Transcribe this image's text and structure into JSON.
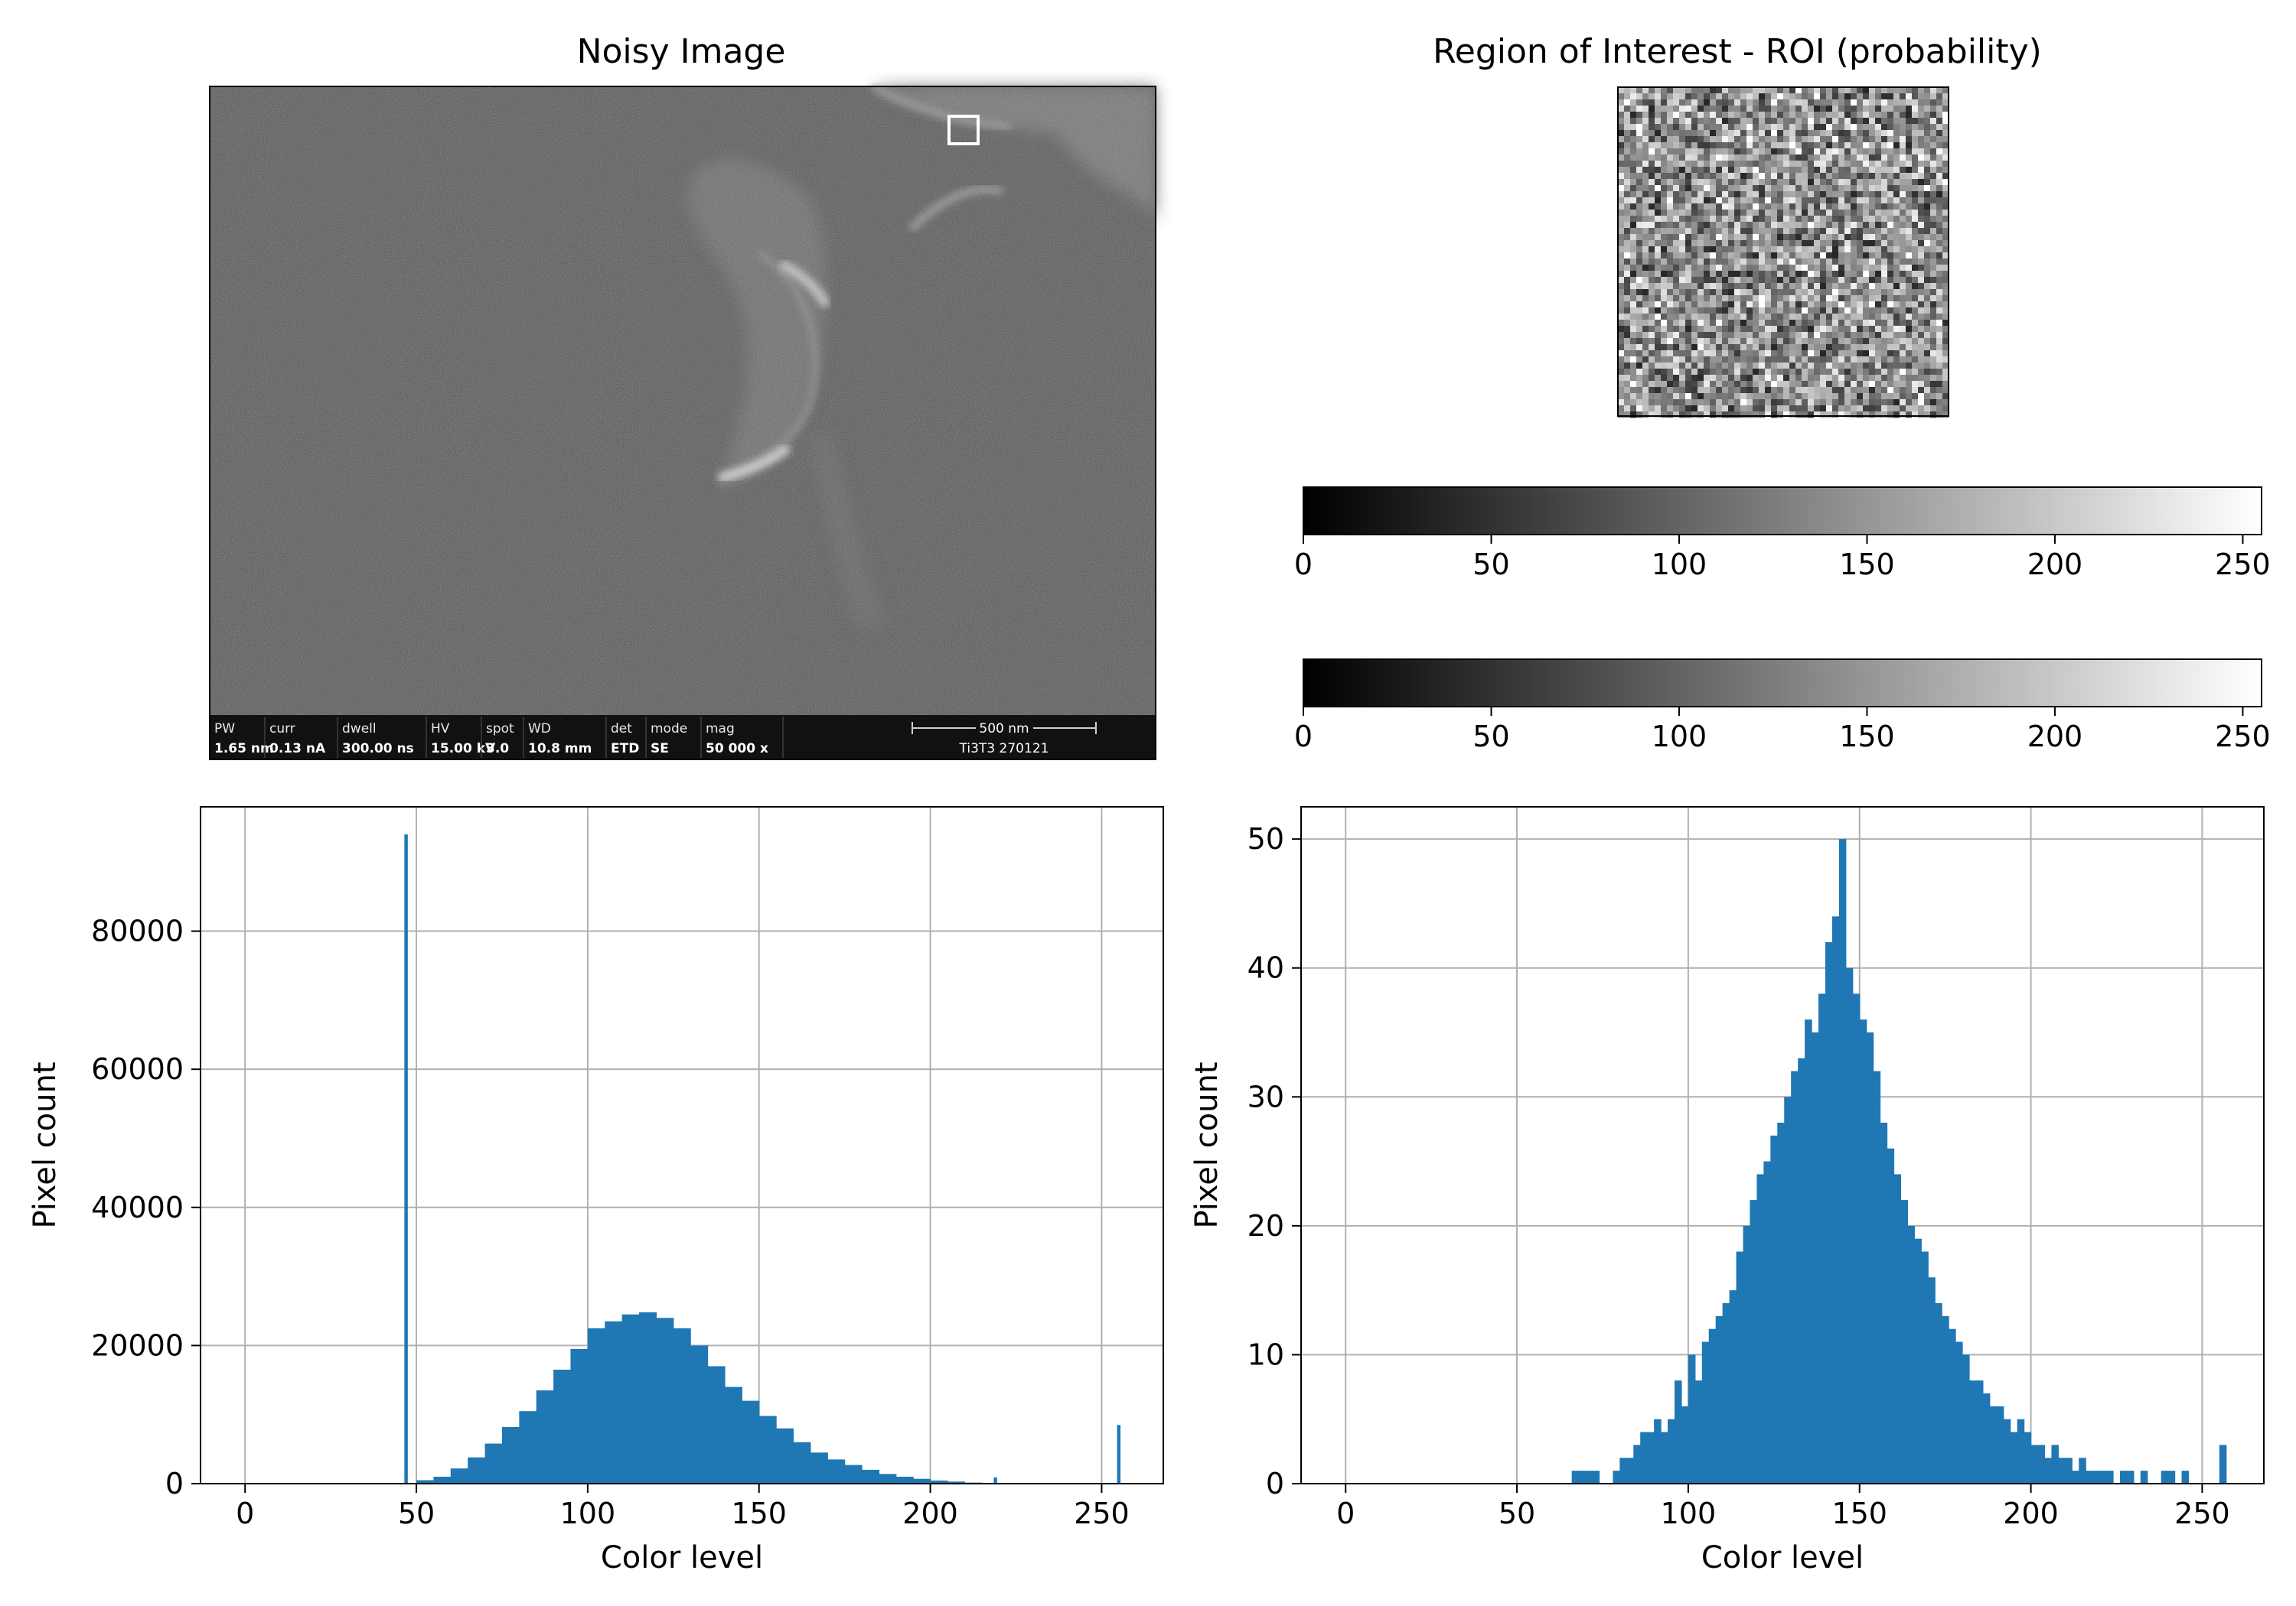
{
  "panels": {
    "noisy_image": {
      "title": "Noisy Image"
    },
    "roi": {
      "title": "Region of Interest - ROI (probability)"
    }
  },
  "sem_info_bar": {
    "cells": [
      {
        "label": "PW",
        "value": "1.65 nm"
      },
      {
        "label": "curr",
        "value": "0.13 nA"
      },
      {
        "label": "dwell",
        "value": "300.00 ns"
      },
      {
        "label": "HV",
        "value": "15.00 kV"
      },
      {
        "label": "spot",
        "value": "3.0"
      },
      {
        "label": "WD",
        "value": "10.8 mm"
      },
      {
        "label": "det",
        "value": "ETD"
      },
      {
        "label": "mode",
        "value": "SE"
      },
      {
        "label": "mag",
        "value": "50 000 x"
      }
    ],
    "scale_bar_label": "500 nm",
    "sample_id": "Ti3T3 270121"
  },
  "colorbars": [
    {
      "range": [
        0,
        255
      ],
      "ticks": [
        "0",
        "50",
        "100",
        "150",
        "200",
        "250"
      ]
    },
    {
      "range": [
        0,
        255
      ],
      "ticks": [
        "0",
        "50",
        "100",
        "150",
        "200",
        "250"
      ]
    }
  ],
  "chart_data": [
    {
      "type": "bar",
      "panel": "bottom-left",
      "title": "",
      "xlabel": "Color level",
      "ylabel": "Pixel count",
      "xlim": [
        -13,
        268
      ],
      "ylim": [
        0,
        98000
      ],
      "x_ticks": [
        "0",
        "50",
        "100",
        "150",
        "200",
        "250"
      ],
      "y_ticks": [
        "0",
        "20000",
        "40000",
        "60000",
        "80000"
      ],
      "grid": true,
      "color": "#1f77b4",
      "spikes": [
        {
          "x": 47,
          "value": 94000
        },
        {
          "x": 255,
          "value": 8500
        },
        {
          "x": 219,
          "value": 900
        },
        {
          "x": 183,
          "value": 1800
        }
      ],
      "x": [
        50,
        55,
        60,
        65,
        70,
        75,
        80,
        85,
        90,
        95,
        100,
        105,
        110,
        115,
        120,
        125,
        130,
        135,
        140,
        145,
        150,
        155,
        160,
        165,
        170,
        175,
        180,
        185,
        190,
        195,
        200,
        205,
        210,
        215
      ],
      "values": [
        500,
        1000,
        2200,
        3800,
        5800,
        8200,
        10500,
        13500,
        16500,
        19500,
        22500,
        23500,
        24500,
        24800,
        24000,
        22500,
        20000,
        17000,
        14000,
        12000,
        9800,
        8000,
        6000,
        4500,
        3500,
        2700,
        2000,
        1400,
        1000,
        700,
        450,
        300,
        150,
        50
      ]
    },
    {
      "type": "bar",
      "panel": "bottom-right",
      "title": "",
      "xlabel": "Color level",
      "ylabel": "Pixel count",
      "xlim": [
        -13,
        268
      ],
      "ylim": [
        0,
        52.5
      ],
      "x_ticks": [
        "0",
        "50",
        "100",
        "150",
        "200",
        "250"
      ],
      "y_ticks": [
        "0",
        "10",
        "20",
        "30",
        "40",
        "50"
      ],
      "grid": true,
      "color": "#1f77b4",
      "x": [
        66,
        68,
        70,
        72,
        74,
        76,
        78,
        80,
        82,
        84,
        86,
        88,
        90,
        92,
        94,
        96,
        98,
        100,
        102,
        104,
        106,
        108,
        110,
        112,
        114,
        116,
        118,
        120,
        122,
        124,
        126,
        128,
        130,
        132,
        134,
        136,
        138,
        140,
        142,
        144,
        146,
        148,
        150,
        152,
        154,
        156,
        158,
        160,
        162,
        164,
        166,
        168,
        170,
        172,
        174,
        176,
        178,
        180,
        182,
        184,
        186,
        188,
        190,
        192,
        194,
        196,
        198,
        200,
        202,
        204,
        206,
        208,
        210,
        212,
        214,
        216,
        218,
        220,
        222,
        224,
        226,
        228,
        230,
        232,
        234,
        236,
        238,
        240,
        242,
        244,
        246,
        248,
        250,
        252,
        255
      ],
      "values": [
        1,
        1,
        1,
        1,
        0,
        0,
        1,
        2,
        2,
        3,
        4,
        4,
        5,
        4,
        5,
        8,
        6,
        10,
        8,
        11,
        12,
        13,
        14,
        15,
        18,
        20,
        22,
        24,
        25,
        27,
        28,
        30,
        32,
        33,
        36,
        35,
        38,
        42,
        44,
        50,
        40,
        38,
        36,
        35,
        32,
        28,
        26,
        24,
        22,
        20,
        19,
        18,
        16,
        14,
        13,
        12,
        11,
        10,
        8,
        8,
        7,
        6,
        6,
        5,
        4,
        5,
        4,
        3,
        3,
        2,
        3,
        2,
        2,
        1,
        2,
        1,
        1,
        1,
        1,
        0,
        1,
        1,
        0,
        1,
        0,
        0,
        1,
        1,
        0,
        1,
        0,
        0,
        0,
        0,
        3
      ]
    }
  ]
}
